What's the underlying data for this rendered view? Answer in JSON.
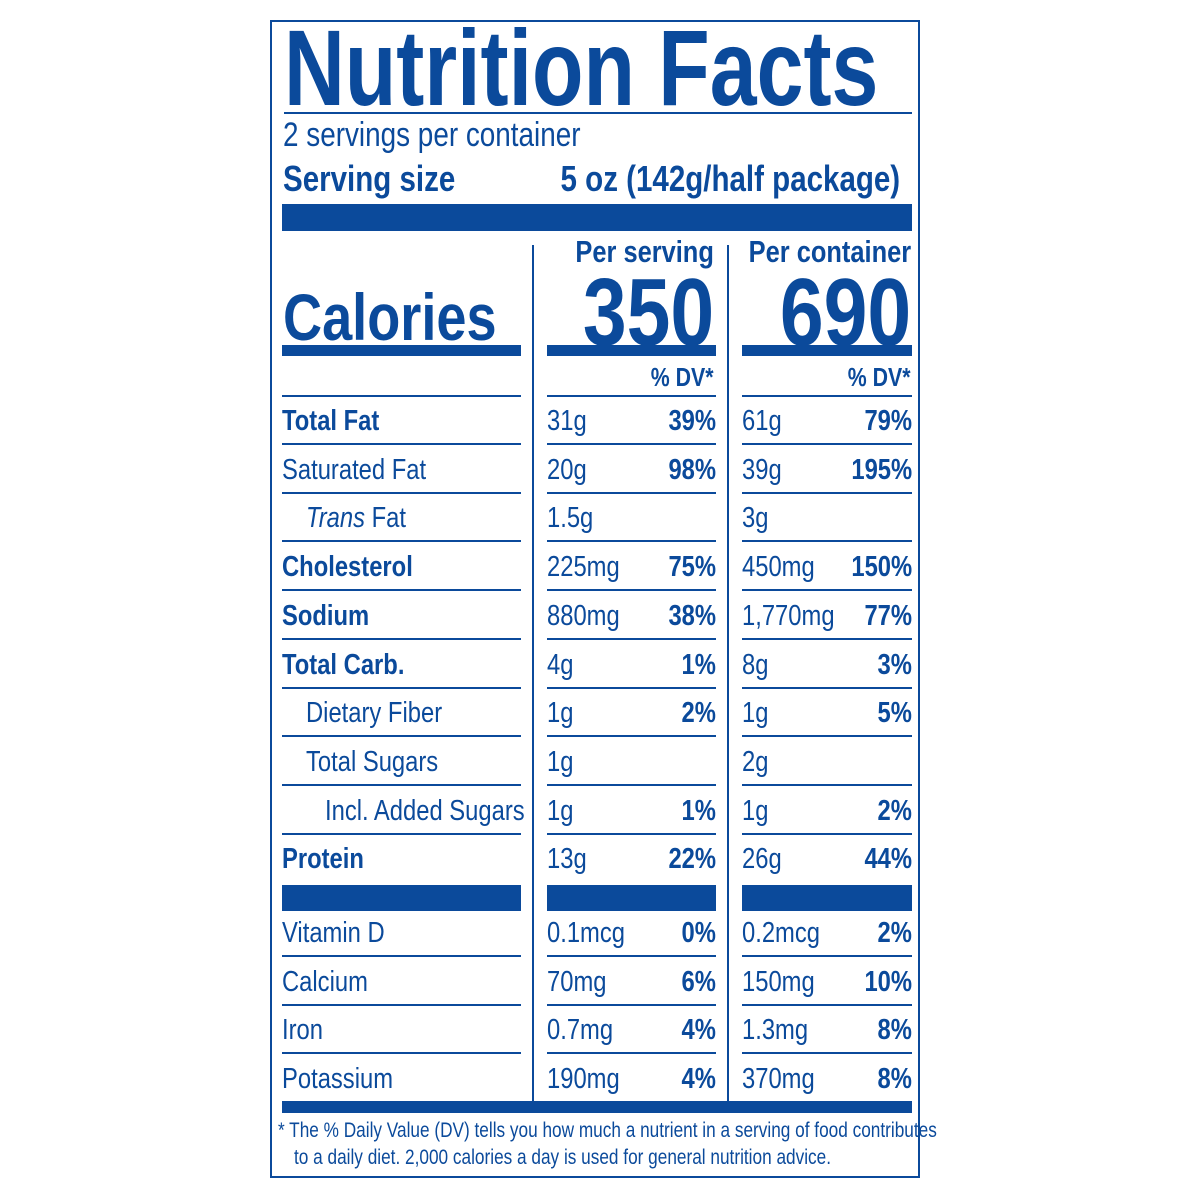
{
  "title": "Nutrition Facts",
  "servings_per_container": "2 servings per container",
  "serving_size_label": "Serving size",
  "serving_size_value": "5 oz (142g/half package)",
  "calories_label": "Calories",
  "per_serving_label": "Per serving",
  "per_container_label": "Per container",
  "calories_per_serving": "350",
  "calories_per_container": "690",
  "dv_header": "% DV*",
  "nutrients": [
    {
      "label": "Total Fat",
      "bold": true,
      "indent": 0,
      "serv_amt": "31g",
      "serv_dv": "39%",
      "cont_amt": "61g",
      "cont_dv": "79%"
    },
    {
      "label": "Saturated Fat",
      "bold": false,
      "indent": 0,
      "serv_amt": "20g",
      "serv_dv": "98%",
      "cont_amt": "39g",
      "cont_dv": "195%"
    },
    {
      "label": "Trans",
      "label_suffix": " Fat",
      "italic_prefix": true,
      "bold": false,
      "indent": 1,
      "serv_amt": "1.5g",
      "serv_dv": "",
      "cont_amt": "3g",
      "cont_dv": ""
    },
    {
      "label": "Cholesterol",
      "bold": true,
      "indent": 0,
      "serv_amt": "225mg",
      "serv_dv": "75%",
      "cont_amt": "450mg",
      "cont_dv": "150%"
    },
    {
      "label": "Sodium",
      "bold": true,
      "indent": 0,
      "serv_amt": "880mg",
      "serv_dv": "38%",
      "cont_amt": "1,770mg",
      "cont_dv": "77%"
    },
    {
      "label": "Total Carb.",
      "bold": true,
      "indent": 0,
      "serv_amt": "4g",
      "serv_dv": "1%",
      "cont_amt": "8g",
      "cont_dv": "3%"
    },
    {
      "label": "Dietary Fiber",
      "bold": false,
      "indent": 1,
      "serv_amt": "1g",
      "serv_dv": "2%",
      "cont_amt": "1g",
      "cont_dv": "5%"
    },
    {
      "label": "Total Sugars",
      "bold": false,
      "indent": 1,
      "serv_amt": "1g",
      "serv_dv": "",
      "cont_amt": "2g",
      "cont_dv": ""
    },
    {
      "label": "Incl. Added Sugars",
      "bold": false,
      "indent": 2,
      "serv_amt": "1g",
      "serv_dv": "1%",
      "cont_amt": "1g",
      "cont_dv": "2%"
    },
    {
      "label": "Protein",
      "bold": true,
      "indent": 0,
      "serv_amt": "13g",
      "serv_dv": "22%",
      "cont_amt": "26g",
      "cont_dv": "44%"
    }
  ],
  "vitamins": [
    {
      "label": "Vitamin D",
      "serv_amt": "0.1mcg",
      "serv_dv": "0%",
      "cont_amt": "0.2mcg",
      "cont_dv": "2%"
    },
    {
      "label": "Calcium",
      "serv_amt": "70mg",
      "serv_dv": "6%",
      "cont_amt": "150mg",
      "cont_dv": "10%"
    },
    {
      "label": "Iron",
      "serv_amt": "0.7mg",
      "serv_dv": "4%",
      "cont_amt": "1.3mg",
      "cont_dv": "8%"
    },
    {
      "label": "Potassium",
      "serv_amt": "190mg",
      "serv_dv": "4%",
      "cont_amt": "370mg",
      "cont_dv": "8%"
    }
  ],
  "footnote_line1": "* The % Daily Value (DV) tells you how much a nutrient in a serving of food contributes",
  "footnote_line2": "to a daily diet. 2,000 calories a day is used for general nutrition advice.",
  "colors": {
    "ink": "#0b4a9b",
    "background": "#ffffff"
  }
}
